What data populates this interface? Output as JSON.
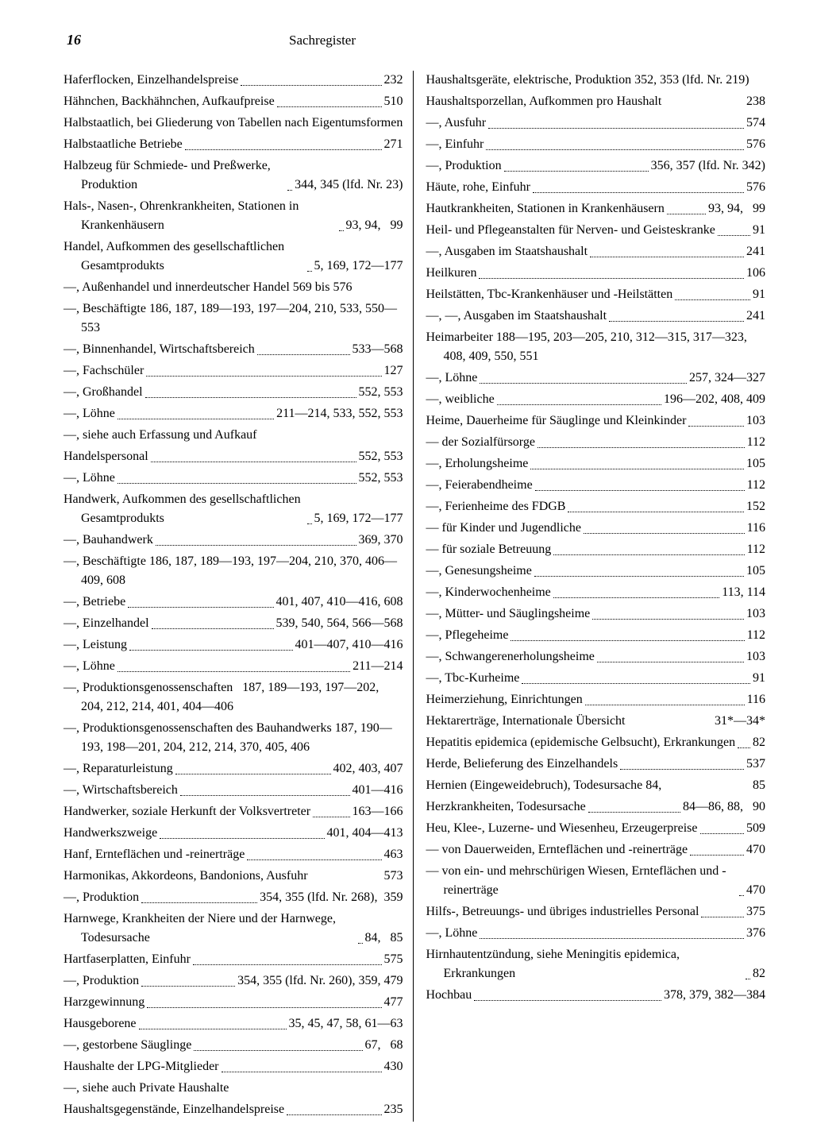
{
  "page_number": "16",
  "header_title": "Sachregister",
  "style": {
    "font_family": "Times New Roman",
    "font_size_pt": 16,
    "text_color": "#000000",
    "background": "#ffffff",
    "leader_style": "dotted",
    "column_rule_color": "#000000"
  },
  "left": [
    {
      "t": "Haferflocken, Einzelhandelspreise",
      "p": "232",
      "dots": true
    },
    {
      "t": "Hähnchen, Backhähnchen, Aufkaufpreise",
      "p": "510",
      "dots": true
    },
    {
      "t": "Halbstaatlich, bei Gliederung von Tabellen nach Eigentumsformen",
      "p": "",
      "dots": false,
      "hang": true
    },
    {
      "t": "Halbstaatliche Betriebe",
      "p": "271",
      "dots": true
    },
    {
      "t": "Halbzeug für Schmiede- und Preßwerke, Produktion",
      "p": "344, 345 (lfd. Nr. 23)",
      "dots": true,
      "hang": true
    },
    {
      "t": "Hals-, Nasen-, Ohrenkrankheiten, Stationen in Krankenhäusern",
      "p": "93, 94,   99",
      "dots": true,
      "hang": true
    },
    {
      "t": "Handel, Aufkommen des gesellschaftlichen Gesamtprodukts",
      "p": "5, 169, 172—177",
      "dots": true,
      "hang": true
    },
    {
      "t": "—, Außenhandel und innerdeutscher Handel 569 bis 576",
      "p": "",
      "dots": false,
      "hang": true
    },
    {
      "t": "—, Beschäftigte 186, 187, 189—193, 197—204, 210, 533, 550—553",
      "p": "",
      "dots": false,
      "hang": true
    },
    {
      "t": "—, Binnenhandel, Wirtschaftsbereich",
      "p": "533—568",
      "dots": true,
      "short": true
    },
    {
      "t": "—, Fachschüler",
      "p": "127",
      "dots": true
    },
    {
      "t": "—, Großhandel",
      "p": "552, 553",
      "dots": true
    },
    {
      "t": "—, Löhne",
      "p": "211—214, 533, 552, 553",
      "dots": true
    },
    {
      "t": "—, siehe auch Erfassung und Aufkauf",
      "p": "",
      "dots": false
    },
    {
      "t": "Handelspersonal",
      "p": "552, 553",
      "dots": true
    },
    {
      "t": "—, Löhne",
      "p": "552, 553",
      "dots": true
    },
    {
      "t": "Handwerk, Aufkommen des gesellschaftlichen Gesamtprodukts",
      "p": "5, 169, 172—177",
      "dots": true,
      "hang": true
    },
    {
      "t": "—, Bauhandwerk",
      "p": "369, 370",
      "dots": true
    },
    {
      "t": "—, Beschäftigte 186, 187, 189—193, 197—204, 210, 370, 406—409, 608",
      "p": "",
      "dots": false,
      "hang": true
    },
    {
      "t": "—, Betriebe",
      "p": "401, 407, 410—416, 608",
      "dots": true
    },
    {
      "t": "—, Einzelhandel",
      "p": "539, 540, 564, 566—568",
      "dots": true
    },
    {
      "t": "—, Leistung",
      "p": "401—407, 410—416",
      "dots": true
    },
    {
      "t": "—, Löhne",
      "p": "211—214",
      "dots": true
    },
    {
      "t": "—, Produktionsgenossenschaften   187, 189—193, 197—202, 204, 212, 214, 401, 404—406",
      "p": "",
      "dots": false,
      "hang": true
    },
    {
      "t": "—, Produktionsgenossenschaften des Bauhandwerks 187, 190—193, 198—201, 204, 212, 214, 370, 405, 406",
      "p": "",
      "dots": false,
      "hang": true
    },
    {
      "t": "—, Reparaturleistung",
      "p": "402, 403, 407",
      "dots": true
    },
    {
      "t": "—, Wirtschaftsbereich",
      "p": "401—416",
      "dots": true
    },
    {
      "t": "Handwerker, soziale Herkunft der Volksvertreter",
      "p": "163—166",
      "dots": true,
      "hang": true
    },
    {
      "t": "Handwerkszweige",
      "p": "401, 404—413",
      "dots": true
    },
    {
      "t": "Hanf, Ernteflächen und -reinerträge",
      "p": "463",
      "dots": true
    },
    {
      "t": "Harmonikas, Akkordeons, Bandonions, Ausfuhr",
      "p": "573",
      "dots": false,
      "tight": true
    },
    {
      "t": "—, Produktion",
      "p": "354, 355 (lfd. Nr. 268),  359",
      "dots": true
    },
    {
      "t": "Harnwege, Krankheiten der Niere und der Harnwege, Todesursache",
      "p": "84,   85",
      "dots": true,
      "hang": true
    },
    {
      "t": "Hartfaserplatten, Einfuhr",
      "p": "575",
      "dots": true
    },
    {
      "t": "—, Produktion",
      "p": "354, 355 (lfd. Nr. 260), 359, 479",
      "dots": true,
      "short": true
    },
    {
      "t": "Harzgewinnung",
      "p": "477",
      "dots": true
    },
    {
      "t": "Hausgeborene",
      "p": "35, 45, 47, 58, 61—63",
      "dots": true
    },
    {
      "t": "—, gestorbene Säuglinge",
      "p": "67,   68",
      "dots": true
    },
    {
      "t": "Haushalte der LPG-Mitglieder",
      "p": "430",
      "dots": true
    },
    {
      "t": "—, siehe auch Private Haushalte",
      "p": "",
      "dots": false
    },
    {
      "t": "Haushaltsgegenstände, Einzelhandelspreise",
      "p": "235",
      "dots": true,
      "short": true
    }
  ],
  "right": [
    {
      "t": "Haushaltsgeräte, elektrische, Produktion 352, 353 (lfd. Nr. 219)",
      "p": "",
      "dots": false,
      "hang": true
    },
    {
      "t": "Haushaltsporzellan, Aufkommen pro Haushalt",
      "p": "238",
      "dots": false,
      "tight": true
    },
    {
      "t": "—, Ausfuhr",
      "p": "574",
      "dots": true
    },
    {
      "t": "—, Einfuhr",
      "p": "576",
      "dots": true
    },
    {
      "t": "—, Produktion",
      "p": "356, 357 (lfd. Nr. 342)",
      "dots": true
    },
    {
      "t": "Häute, rohe, Einfuhr",
      "p": "576",
      "dots": true
    },
    {
      "t": "Hautkrankheiten, Stationen in Krankenhäusern",
      "p": "93, 94,   99",
      "dots": true,
      "hang": true
    },
    {
      "t": "Heil- und Pflegeanstalten für Nerven- und Geisteskranke",
      "p": "91",
      "dots": true,
      "hang": true
    },
    {
      "t": "—, Ausgaben im Staatshaushalt",
      "p": "241",
      "dots": true
    },
    {
      "t": "Heilkuren",
      "p": "106",
      "dots": true
    },
    {
      "t": "Heilstätten, Tbc-Krankenhäuser und -Heilstätten",
      "p": "91",
      "dots": true,
      "hang": true
    },
    {
      "t": "—, —, Ausgaben im Staatshaushalt",
      "p": "241",
      "dots": true
    },
    {
      "t": "Heimarbeiter 188—195, 203—205, 210, 312—315, 317—323, 408, 409, 550, 551",
      "p": "",
      "dots": false,
      "hang": true
    },
    {
      "t": "—, Löhne",
      "p": "257, 324—327",
      "dots": true
    },
    {
      "t": "—, weibliche",
      "p": "196—202, 408, 409",
      "dots": true
    },
    {
      "t": "Heime, Dauerheime für Säuglinge und Kleinkinder",
      "p": "103",
      "dots": true,
      "hang": true
    },
    {
      "t": "— der Sozialfürsorge",
      "p": "112",
      "dots": true
    },
    {
      "t": "—, Erholungsheime",
      "p": "105",
      "dots": true
    },
    {
      "t": "—, Feierabendheime",
      "p": "112",
      "dots": true
    },
    {
      "t": "—, Ferienheime des FDGB",
      "p": "152",
      "dots": true
    },
    {
      "t": "— für Kinder und Jugendliche",
      "p": "116",
      "dots": true
    },
    {
      "t": "— für soziale Betreuung",
      "p": "112",
      "dots": true
    },
    {
      "t": "—, Genesungsheime",
      "p": "105",
      "dots": true
    },
    {
      "t": "—, Kinderwochenheime",
      "p": "113, 114",
      "dots": true
    },
    {
      "t": "—, Mütter- und Säuglingsheime",
      "p": "103",
      "dots": true
    },
    {
      "t": "—, Pflegeheime",
      "p": "112",
      "dots": true
    },
    {
      "t": "—, Schwangerenerholungsheime",
      "p": "103",
      "dots": true
    },
    {
      "t": "—, Tbc-Kurheime",
      "p": "91",
      "dots": true
    },
    {
      "t": "Heimerziehung, Einrichtungen",
      "p": "116",
      "dots": true
    },
    {
      "t": "Hektarerträge, Internationale Übersicht",
      "p": "31*—34*",
      "dots": false,
      "tight": true
    },
    {
      "t": "Hepatitis epidemica (epidemische Gelbsucht), Erkrankungen",
      "p": "82",
      "dots": true,
      "hang": true
    },
    {
      "t": "Herde, Belieferung des Einzelhandels",
      "p": "537",
      "dots": true
    },
    {
      "t": "Hernien (Eingeweidebruch), Todesursache 84,",
      "p": "85",
      "dots": false,
      "tight": true
    },
    {
      "t": "Herzkrankheiten, Todesursache",
      "p": "84—86, 88,   90",
      "dots": true,
      "short": true
    },
    {
      "t": "Heu, Klee-, Luzerne- und Wiesenheu, Erzeugerpreise",
      "p": "509",
      "dots": true,
      "hang": true
    },
    {
      "t": "— von Dauerweiden, Ernteflächen und -reinerträge",
      "p": "470",
      "dots": true,
      "hang": true
    },
    {
      "t": "— von ein- und mehrschürigen Wiesen, Ernteflächen und -reinerträge",
      "p": "470",
      "dots": true,
      "hang": true
    },
    {
      "t": "Hilfs-, Betreuungs- und übriges industrielles Personal",
      "p": "375",
      "dots": true,
      "hang": true
    },
    {
      "t": "—, Löhne",
      "p": "376",
      "dots": true
    },
    {
      "t": "Hirnhautentzündung, siehe Meningitis epidemica, Erkrankungen",
      "p": "82",
      "dots": true,
      "hang": true
    },
    {
      "t": "Hochbau",
      "p": "378, 379, 382—384",
      "dots": true
    }
  ]
}
